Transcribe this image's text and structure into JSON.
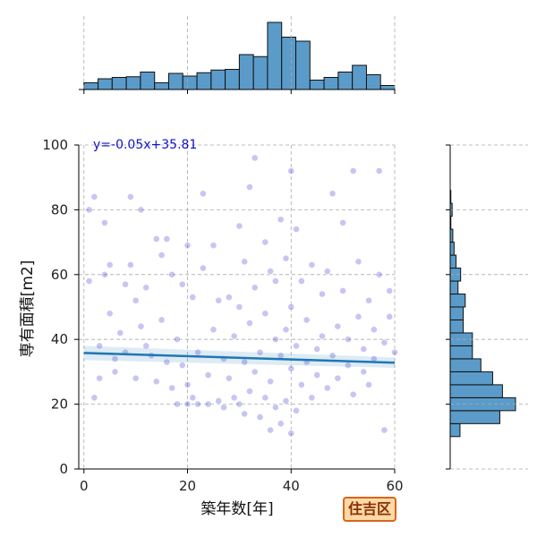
{
  "chart_data": {
    "type": "scatter",
    "title": "",
    "xlabel": "築年数[年]",
    "ylabel": "専有面積[m2]",
    "xlim": [
      -1,
      60
    ],
    "ylim": [
      0,
      100
    ],
    "xticks": [
      0,
      20,
      40,
      60
    ],
    "yticks": [
      0,
      20,
      40,
      60,
      80,
      100
    ],
    "grid": true,
    "regression": {
      "equation": "y=-0.05x+35.81",
      "slope": -0.05,
      "intercept": 35.81
    },
    "badge": "住吉区",
    "colors": {
      "points": "#1a1acc",
      "regression": "#1f77b4",
      "hist": "#5b9bc9",
      "badge_bg": "#ffd9a8",
      "badge_border": "#d9651b"
    },
    "x_histogram": {
      "bin_edges": [
        0,
        2.73,
        5.45,
        8.18,
        10.91,
        13.64,
        16.36,
        19.09,
        21.82,
        24.55,
        27.27,
        30.0,
        32.73,
        35.45,
        38.18,
        40.91,
        43.64,
        46.36,
        49.09,
        51.82,
        54.55,
        57.27,
        60.0
      ],
      "relative_heights": [
        0.1,
        0.16,
        0.18,
        0.19,
        0.26,
        0.1,
        0.24,
        0.2,
        0.25,
        0.29,
        0.3,
        0.52,
        0.49,
        1.0,
        0.78,
        0.72,
        0.14,
        0.18,
        0.26,
        0.36,
        0.22,
        0.06
      ]
    },
    "y_histogram": {
      "bin_edges": [
        10,
        14,
        18,
        22,
        26,
        30,
        34,
        38,
        42,
        46,
        50,
        54,
        58,
        62,
        66,
        70,
        74,
        78,
        82,
        86
      ],
      "relative_heights": [
        0.15,
        0.76,
        1.0,
        0.8,
        0.65,
        0.47,
        0.34,
        0.34,
        0.2,
        0.2,
        0.23,
        0.12,
        0.16,
        0.09,
        0.06,
        0.04,
        0.01,
        0.03,
        0.01
      ]
    },
    "scatter_points_approx": [
      [
        1,
        58
      ],
      [
        1,
        80
      ],
      [
        2,
        84
      ],
      [
        2,
        22
      ],
      [
        3,
        38
      ],
      [
        3,
        28
      ],
      [
        4,
        76
      ],
      [
        4,
        60
      ],
      [
        5,
        63
      ],
      [
        5,
        48
      ],
      [
        6,
        34
      ],
      [
        6,
        30
      ],
      [
        7,
        42
      ],
      [
        8,
        57
      ],
      [
        8,
        36
      ],
      [
        9,
        84
      ],
      [
        9,
        63
      ],
      [
        10,
        52
      ],
      [
        10,
        28
      ],
      [
        11,
        80
      ],
      [
        11,
        44
      ],
      [
        12,
        56
      ],
      [
        12,
        38
      ],
      [
        13,
        35
      ],
      [
        14,
        71
      ],
      [
        14,
        27
      ],
      [
        15,
        46
      ],
      [
        15,
        66
      ],
      [
        16,
        71
      ],
      [
        16,
        33
      ],
      [
        17,
        60
      ],
      [
        17,
        25
      ],
      [
        18,
        40
      ],
      [
        18,
        20
      ],
      [
        19,
        57
      ],
      [
        19,
        32
      ],
      [
        20,
        69
      ],
      [
        20,
        20
      ],
      [
        20,
        26
      ],
      [
        21,
        53
      ],
      [
        21,
        22
      ],
      [
        22,
        36
      ],
      [
        22,
        20
      ],
      [
        23,
        85
      ],
      [
        23,
        62
      ],
      [
        24,
        29
      ],
      [
        24,
        20
      ],
      [
        25,
        43
      ],
      [
        25,
        69
      ],
      [
        26,
        52
      ],
      [
        26,
        21
      ],
      [
        27,
        34
      ],
      [
        27,
        19
      ],
      [
        28,
        53
      ],
      [
        28,
        28
      ],
      [
        29,
        41
      ],
      [
        29,
        22
      ],
      [
        30,
        75
      ],
      [
        30,
        50
      ],
      [
        30,
        20
      ],
      [
        31,
        64
      ],
      [
        31,
        33
      ],
      [
        31,
        17
      ],
      [
        32,
        87
      ],
      [
        32,
        45
      ],
      [
        32,
        24
      ],
      [
        33,
        96
      ],
      [
        33,
        56
      ],
      [
        33,
        30
      ],
      [
        34,
        36
      ],
      [
        34,
        16
      ],
      [
        35,
        70
      ],
      [
        35,
        48
      ],
      [
        35,
        22
      ],
      [
        36,
        61
      ],
      [
        36,
        27
      ],
      [
        36,
        12
      ],
      [
        37,
        58
      ],
      [
        37,
        40
      ],
      [
        37,
        19
      ],
      [
        38,
        77
      ],
      [
        38,
        35
      ],
      [
        38,
        14
      ],
      [
        39,
        65
      ],
      [
        39,
        43
      ],
      [
        39,
        21
      ],
      [
        40,
        92
      ],
      [
        40,
        50
      ],
      [
        40,
        31
      ],
      [
        40,
        11
      ],
      [
        41,
        74
      ],
      [
        41,
        38
      ],
      [
        41,
        18
      ],
      [
        42,
        58
      ],
      [
        42,
        26
      ],
      [
        43,
        46
      ],
      [
        43,
        33
      ],
      [
        44,
        63
      ],
      [
        44,
        22
      ],
      [
        45,
        37
      ],
      [
        45,
        29
      ],
      [
        46,
        54
      ],
      [
        46,
        41
      ],
      [
        47,
        25
      ],
      [
        47,
        61
      ],
      [
        48,
        85
      ],
      [
        48,
        35
      ],
      [
        49,
        44
      ],
      [
        49,
        28
      ],
      [
        50,
        76
      ],
      [
        50,
        55
      ],
      [
        51,
        32
      ],
      [
        51,
        40
      ],
      [
        52,
        92
      ],
      [
        52,
        23
      ],
      [
        53,
        47
      ],
      [
        53,
        64
      ],
      [
        54,
        30
      ],
      [
        54,
        37
      ],
      [
        55,
        52
      ],
      [
        55,
        26
      ],
      [
        56,
        43
      ],
      [
        56,
        34
      ],
      [
        57,
        92
      ],
      [
        57,
        60
      ],
      [
        58,
        39
      ],
      [
        58,
        12
      ],
      [
        59,
        55
      ],
      [
        59,
        47
      ],
      [
        60,
        36
      ]
    ]
  }
}
